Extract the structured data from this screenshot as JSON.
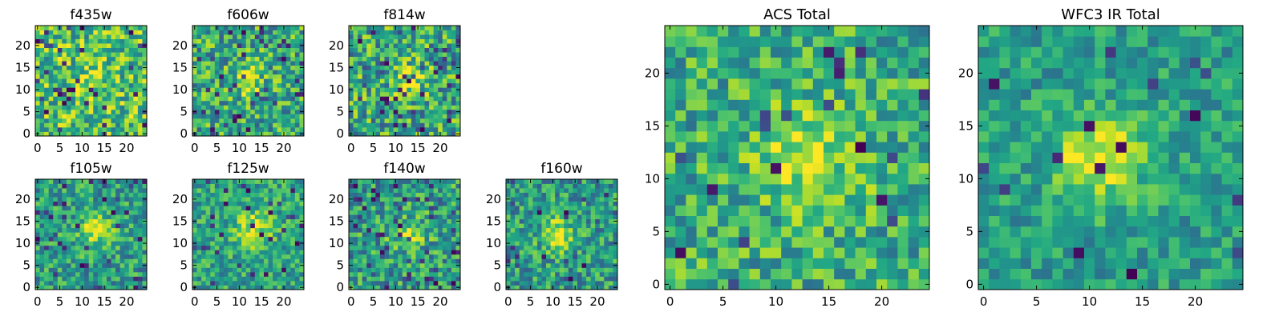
{
  "chart_data": [
    {
      "type": "heatmap",
      "title": "f435w",
      "grid_size": 25,
      "xlim": [
        -0.5,
        24.5
      ],
      "ylim": [
        -0.5,
        24.5
      ],
      "x_ticks": [
        0,
        5,
        10,
        15,
        20
      ],
      "y_ticks": [
        0,
        5,
        10,
        15,
        20
      ],
      "colormap": "viridis",
      "seed": 11,
      "source": {
        "x": 12,
        "y": 12,
        "sigma": 3.0,
        "amplitude": 0.1
      },
      "noise_level": 0.3,
      "baseline": 0.7,
      "dark_pixel_fraction": 0.06
    },
    {
      "type": "heatmap",
      "title": "f606w",
      "grid_size": 25,
      "xlim": [
        -0.5,
        24.5
      ],
      "ylim": [
        -0.5,
        24.5
      ],
      "x_ticks": [
        0,
        5,
        10,
        15,
        20
      ],
      "y_ticks": [
        0,
        5,
        10,
        15,
        20
      ],
      "colormap": "viridis",
      "seed": 23,
      "source": {
        "x": 12,
        "y": 12,
        "sigma": 2.5,
        "amplitude": 0.3
      },
      "noise_level": 0.3,
      "baseline": 0.6,
      "dark_pixel_fraction": 0.06
    },
    {
      "type": "heatmap",
      "title": "f814w",
      "grid_size": 25,
      "xlim": [
        -0.5,
        24.5
      ],
      "ylim": [
        -0.5,
        24.5
      ],
      "x_ticks": [
        0,
        5,
        10,
        15,
        20
      ],
      "y_ticks": [
        0,
        5,
        10,
        15,
        20
      ],
      "colormap": "viridis",
      "seed": 37,
      "source": {
        "x": 13,
        "y": 12,
        "sigma": 2.5,
        "amplitude": 0.35
      },
      "noise_level": 0.32,
      "baseline": 0.6,
      "dark_pixel_fraction": 0.08
    },
    {
      "type": "heatmap",
      "title": "f105w",
      "grid_size": 25,
      "xlim": [
        -0.5,
        24.5
      ],
      "ylim": [
        -0.5,
        24.5
      ],
      "x_ticks": [
        0,
        5,
        10,
        15,
        20
      ],
      "y_ticks": [
        0,
        5,
        10,
        15,
        20
      ],
      "colormap": "viridis",
      "seed": 41,
      "source": {
        "x": 13,
        "y": 13,
        "sigma": 2.5,
        "amplitude": 0.4
      },
      "noise_level": 0.25,
      "baseline": 0.55,
      "dark_pixel_fraction": 0.05
    },
    {
      "type": "heatmap",
      "title": "f125w",
      "grid_size": 25,
      "xlim": [
        -0.5,
        24.5
      ],
      "ylim": [
        -0.5,
        24.5
      ],
      "x_ticks": [
        0,
        5,
        10,
        15,
        20
      ],
      "y_ticks": [
        0,
        5,
        10,
        15,
        20
      ],
      "colormap": "viridis",
      "seed": 53,
      "source": {
        "x": 13,
        "y": 13,
        "sigma": 3.0,
        "amplitude": 0.35
      },
      "noise_level": 0.22,
      "baseline": 0.58,
      "dark_pixel_fraction": 0.04
    },
    {
      "type": "heatmap",
      "title": "f140w",
      "grid_size": 25,
      "xlim": [
        -0.5,
        24.5
      ],
      "ylim": [
        -0.5,
        24.5
      ],
      "x_ticks": [
        0,
        5,
        10,
        15,
        20
      ],
      "y_ticks": [
        0,
        5,
        10,
        15,
        20
      ],
      "colormap": "viridis",
      "seed": 67,
      "source": {
        "x": 13,
        "y": 12,
        "sigma": 2.5,
        "amplitude": 0.35
      },
      "noise_level": 0.28,
      "baseline": 0.55,
      "dark_pixel_fraction": 0.07
    },
    {
      "type": "heatmap",
      "title": "f160w",
      "grid_size": 25,
      "xlim": [
        -0.5,
        24.5
      ],
      "ylim": [
        -0.5,
        24.5
      ],
      "x_ticks": [
        0,
        5,
        10,
        15,
        20
      ],
      "y_ticks": [
        0,
        5,
        10,
        15,
        20
      ],
      "colormap": "viridis",
      "seed": 79,
      "source": {
        "x": 11,
        "y": 12,
        "sigma": 2.5,
        "amplitude": 0.4
      },
      "noise_level": 0.25,
      "baseline": 0.55,
      "dark_pixel_fraction": 0.05
    },
    {
      "type": "heatmap",
      "title": "ACS Total",
      "grid_size": 25,
      "xlim": [
        -0.5,
        24.5
      ],
      "ylim": [
        -0.5,
        24.5
      ],
      "x_ticks": [
        0,
        5,
        10,
        15,
        20
      ],
      "y_ticks": [
        0,
        5,
        10,
        15,
        20
      ],
      "colormap": "viridis",
      "seed": 97,
      "source": {
        "x": 13,
        "y": 12,
        "sigma": 3.5,
        "amplitude": 0.3
      },
      "noise_level": 0.25,
      "baseline": 0.62,
      "dark_pixel_fraction": 0.03
    },
    {
      "type": "heatmap",
      "title": "WFC3 IR Total",
      "grid_size": 25,
      "xlim": [
        -0.5,
        24.5
      ],
      "ylim": [
        -0.5,
        24.5
      ],
      "x_ticks": [
        0,
        5,
        10,
        15,
        20
      ],
      "y_ticks": [
        0,
        5,
        10,
        15,
        20
      ],
      "colormap": "viridis",
      "seed": 113,
      "source": {
        "x": 11,
        "y": 12,
        "sigma": 3.0,
        "amplitude": 0.45
      },
      "noise_level": 0.18,
      "baseline": 0.55,
      "dark_pixel_fraction": 0.03
    }
  ]
}
